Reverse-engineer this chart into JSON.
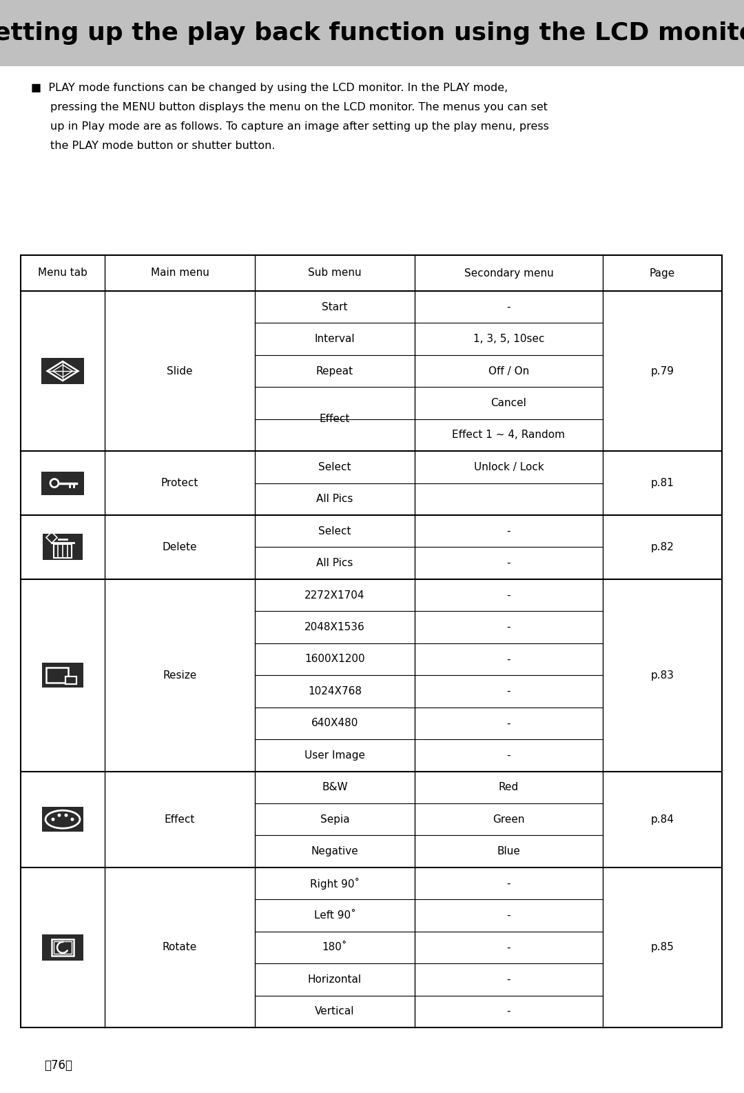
{
  "title": "Setting up the play back function using the LCD monitor",
  "title_bg": "#c0c0c0",
  "body_bg": "#ffffff",
  "desc_line1": "PLAY mode functions can be changed by using the LCD monitor. In the PLAY mode,",
  "desc_line2": "pressing the MENU button displays the menu on the LCD monitor. The menus you can set",
  "desc_line3": "up in Play mode are as follows. To capture an image after setting up the play menu, press",
  "desc_line4": "the PLAY mode button or shutter button.",
  "bullet": "■",
  "col_headers": [
    "Menu tab",
    "Main menu",
    "Sub menu",
    "Secondary menu",
    "Page"
  ],
  "footer": "《76》",
  "table_rows": [
    {
      "group": "Slide",
      "page": "p.79",
      "icon": "slide",
      "subrows": [
        {
          "sub": "Start",
          "sec": "-",
          "sec2": null
        },
        {
          "sub": "Interval",
          "sec": "1, 3, 5, 10sec",
          "sec2": null
        },
        {
          "sub": "Repeat",
          "sec": "Off / On",
          "sec2": null
        },
        {
          "sub": "Effect",
          "sec": "Cancel",
          "sec2": "Effect 1 ~ 4, Random"
        }
      ]
    },
    {
      "group": "Protect",
      "page": "p.81",
      "icon": "protect",
      "subrows": [
        {
          "sub": "Select",
          "sec": "Unlock / Lock",
          "sec2": null
        },
        {
          "sub": "All Pics",
          "sec": "",
          "sec2": null
        }
      ]
    },
    {
      "group": "Delete",
      "page": "p.82",
      "icon": "delete",
      "subrows": [
        {
          "sub": "Select",
          "sec": "-",
          "sec2": null
        },
        {
          "sub": "All Pics",
          "sec": "-",
          "sec2": null
        }
      ]
    },
    {
      "group": "Resize",
      "page": "p.83",
      "icon": "resize",
      "subrows": [
        {
          "sub": "2272X1704",
          "sec": "-",
          "sec2": null
        },
        {
          "sub": "2048X1536",
          "sec": "-",
          "sec2": null
        },
        {
          "sub": "1600X1200",
          "sec": "-",
          "sec2": null
        },
        {
          "sub": "1024X768",
          "sec": "-",
          "sec2": null
        },
        {
          "sub": "640X480",
          "sec": "-",
          "sec2": null
        },
        {
          "sub": "User Image",
          "sec": "-",
          "sec2": null
        }
      ]
    },
    {
      "group": "Effect",
      "page": "p.84",
      "icon": "effect",
      "subrows": [
        {
          "sub": "B&W",
          "sec": "Red",
          "sec2": null
        },
        {
          "sub": "Sepia",
          "sec": "Green",
          "sec2": null
        },
        {
          "sub": "Negative",
          "sec": "Blue",
          "sec2": null
        }
      ]
    },
    {
      "group": "Rotate",
      "page": "p.85",
      "icon": "rotate",
      "subrows": [
        {
          "sub": "Right 90˚",
          "sec": "-",
          "sec2": null
        },
        {
          "sub": "Left 90˚",
          "sec": "-",
          "sec2": null
        },
        {
          "sub": "180˚",
          "sec": "-",
          "sec2": null
        },
        {
          "sub": "Horizontal",
          "sec": "-",
          "sec2": null
        },
        {
          "sub": "Vertical",
          "sec": "-",
          "sec2": null
        }
      ]
    }
  ]
}
